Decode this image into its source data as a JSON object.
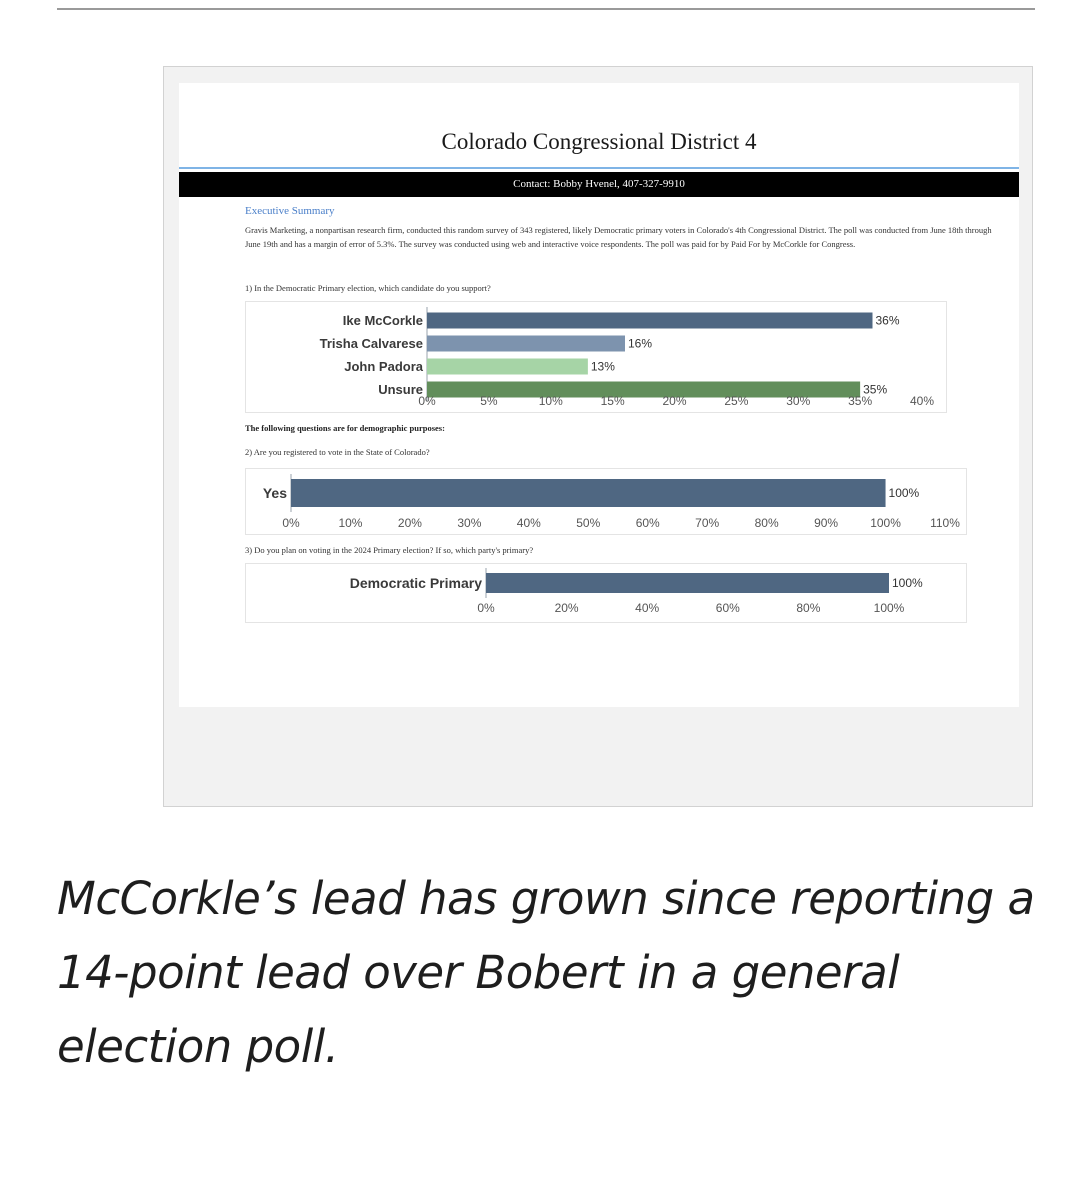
{
  "document": {
    "title": "Colorado Congressional District 4",
    "contact": "Contact: Bobby Hvenel, 407-327-9910",
    "section_heading": "Executive Summary",
    "summary": "Gravis Marketing, a nonpartisan research firm, conducted this random survey of 343 registered, likely Democratic primary voters in Colorado's 4th Congressional District. The poll was conducted from June 18th through June 19th and has a margin of error of 5.3%. The survey was conducted using web and interactive voice respondents. The poll was paid for by Paid For by McCorkle for Congress.",
    "q1": "1) In the Democratic Primary election, which candidate do you support?",
    "demographic_note": "The following questions are for demographic purposes:",
    "q2": "2) Are you registered to vote in the State of Colorado?",
    "q3": "3) Do you plan on voting in the 2024 Primary election? If so, which party's primary?"
  },
  "chart_data": [
    {
      "type": "bar",
      "orientation": "horizontal",
      "categories": [
        "Ike McCorkle",
        "Trisha Calvarese",
        "John Padora",
        "Unsure"
      ],
      "values": [
        36,
        16,
        13,
        35
      ],
      "value_labels": [
        "36%",
        "16%",
        "13%",
        "35%"
      ],
      "bar_colors": [
        "#4f6782",
        "#7d93ae",
        "#a6d4a6",
        "#628e5b"
      ],
      "ticks": [
        "0%",
        "5%",
        "10%",
        "15%",
        "20%",
        "25%",
        "30%",
        "35%",
        "40%"
      ],
      "xlim": [
        0,
        40
      ]
    },
    {
      "type": "bar",
      "orientation": "horizontal",
      "categories": [
        "Yes"
      ],
      "values": [
        100
      ],
      "value_labels": [
        "100%"
      ],
      "bar_colors": [
        "#4f6782"
      ],
      "ticks": [
        "0%",
        "10%",
        "20%",
        "30%",
        "40%",
        "50%",
        "60%",
        "70%",
        "80%",
        "90%",
        "100%",
        "110%"
      ],
      "xlim": [
        0,
        110
      ]
    },
    {
      "type": "bar",
      "orientation": "horizontal",
      "categories": [
        "Democratic Primary"
      ],
      "values": [
        100
      ],
      "value_labels": [
        "100%"
      ],
      "bar_colors": [
        "#4f6782"
      ],
      "ticks": [
        "0%",
        "20%",
        "40%",
        "60%",
        "80%",
        "100%"
      ],
      "xlim": [
        0,
        100
      ]
    }
  ],
  "caption": "McCorkle’s lead has grown since reporting a 14-point lead over Bobert in a general election poll."
}
